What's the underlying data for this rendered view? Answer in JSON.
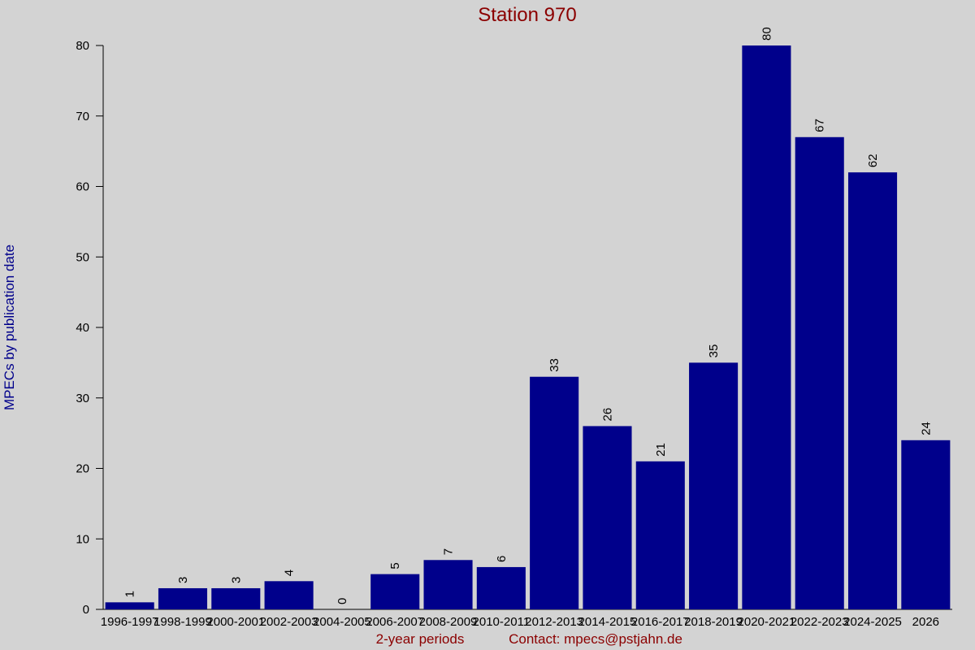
{
  "chart_data": {
    "type": "bar",
    "title": "Station 970",
    "x_label": "2-year periods",
    "contact": "Contact: mpecs@pstjahn.de",
    "y_label": "MPECs by publication date",
    "categories": [
      "1996-1997",
      "1998-1999",
      "2000-2001",
      "2002-2003",
      "2004-2005",
      "2006-2007",
      "2008-2009",
      "2010-2011",
      "2012-2013",
      "2014-2015",
      "2016-2017",
      "2018-2019",
      "2020-2021",
      "2022-2023",
      "2024-2025",
      "2026"
    ],
    "values": [
      1,
      3,
      3,
      4,
      0,
      5,
      7,
      6,
      33,
      26,
      21,
      35,
      80,
      67,
      62,
      24
    ],
    "color": "#00008b",
    "ylim": [
      0,
      80
    ],
    "yticks": [
      0,
      10,
      20,
      30,
      40,
      50,
      60,
      70,
      80
    ],
    "grid": false
  }
}
